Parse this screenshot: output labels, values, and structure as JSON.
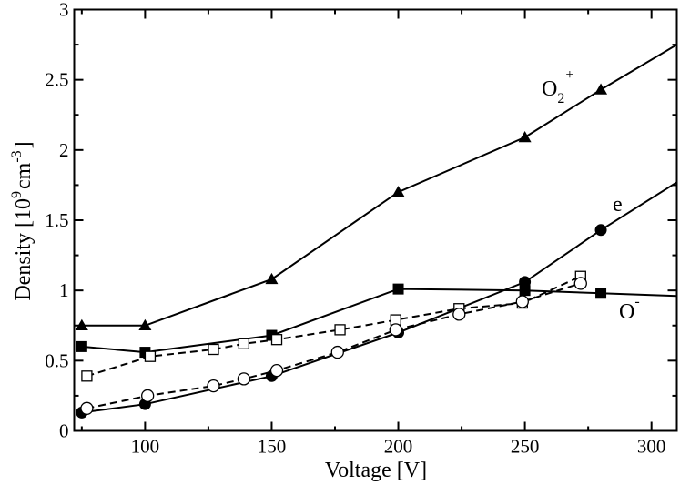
{
  "chart_data": {
    "type": "line",
    "title": "",
    "xlabel": "Voltage [V]",
    "ylabel": {
      "main": "Density [10",
      "exp1": "9",
      "mid": "cm",
      "exp2": "-3",
      "end": "]"
    },
    "xlim": [
      72,
      310
    ],
    "ylim": [
      0,
      3
    ],
    "xticks": [
      100,
      150,
      200,
      250,
      300
    ],
    "xtick_labels": [
      "100",
      "150",
      "200",
      "250",
      "300"
    ],
    "yticks": [
      0,
      0.5,
      1,
      1.5,
      2,
      2.5,
      3
    ],
    "ytick_labels": [
      "0",
      "0.5",
      "1",
      "1.5",
      "2",
      "2.5",
      "3"
    ],
    "grid": false,
    "series": [
      {
        "name": "O2+",
        "label_text": "O",
        "label_sub": "2",
        "label_sup": "+",
        "style": "solid",
        "marker": "triangle-filled",
        "x": [
          75,
          100,
          150,
          200,
          250,
          280,
          310
        ],
        "y": [
          0.75,
          0.75,
          1.08,
          1.7,
          2.09,
          2.43,
          2.75
        ],
        "marker_mask": [
          true,
          true,
          true,
          true,
          true,
          true,
          false
        ]
      },
      {
        "name": "e",
        "label_text": "e",
        "style": "solid",
        "marker": "circle-filled",
        "x": [
          75,
          100,
          150,
          200,
          250,
          280,
          310
        ],
        "y": [
          0.13,
          0.19,
          0.39,
          0.7,
          1.06,
          1.43,
          1.77
        ],
        "marker_mask": [
          true,
          true,
          true,
          true,
          true,
          true,
          false
        ]
      },
      {
        "name": "O-",
        "label_text": "O",
        "label_sup": "-",
        "style": "solid",
        "marker": "square-filled",
        "x": [
          75,
          100,
          150,
          200,
          250,
          280,
          310
        ],
        "y": [
          0.6,
          0.56,
          0.68,
          1.01,
          1.0,
          0.98,
          0.96
        ],
        "marker_mask": [
          true,
          true,
          true,
          true,
          true,
          true,
          false
        ]
      },
      {
        "name": "O- (dashed)",
        "style": "dashed",
        "marker": "square-open",
        "x": [
          77,
          102,
          127,
          139,
          152,
          177,
          199,
          224,
          249,
          272
        ],
        "y": [
          0.39,
          0.53,
          0.58,
          0.62,
          0.65,
          0.72,
          0.79,
          0.87,
          0.91,
          1.1
        ],
        "marker_mask": [
          true,
          true,
          true,
          true,
          true,
          true,
          true,
          true,
          true,
          true
        ]
      },
      {
        "name": "e (dashed)",
        "style": "dashed",
        "marker": "circle-open",
        "x": [
          77,
          101,
          127,
          139,
          152,
          176,
          199,
          224,
          249,
          272
        ],
        "y": [
          0.16,
          0.25,
          0.32,
          0.37,
          0.43,
          0.56,
          0.72,
          0.83,
          0.92,
          1.05
        ],
        "marker_mask": [
          true,
          true,
          true,
          true,
          true,
          true,
          true,
          true,
          true,
          true
        ]
      }
    ]
  }
}
